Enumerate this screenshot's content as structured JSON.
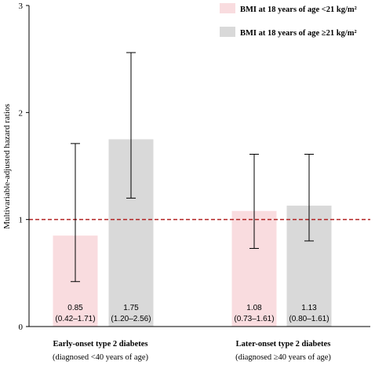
{
  "chart_data": {
    "type": "bar",
    "ylabel": "Multivariable-adjusted hazard ratios",
    "ylim": [
      0,
      3
    ],
    "yticks": [
      "0",
      "1",
      "2",
      "3"
    ],
    "reference_line": 1,
    "groups": [
      {
        "line1": "Early-onset type 2 diabetes",
        "line2": "(diagnosed <40 years of age)"
      },
      {
        "line1": "Later-onset type 2 diabetes",
        "line2": "(diagnosed  ≥40 years of age)"
      }
    ],
    "series": [
      {
        "name": "BMI at 18 years of age <21 kg/m²",
        "color": "#f9dcdf",
        "values": [
          0.85,
          1.08
        ],
        "ci_low": [
          0.42,
          0.73
        ],
        "ci_high": [
          1.71,
          1.61
        ],
        "labels": [
          "0.85",
          "1.08"
        ],
        "ci_labels": [
          "(0.42–1.71)",
          "(0.73–1.61)"
        ]
      },
      {
        "name": "BMI at 18 years of age ≥21 kg/m²",
        "color": "#d9d9d9",
        "values": [
          1.75,
          1.13
        ],
        "ci_low": [
          1.2,
          0.8
        ],
        "ci_high": [
          2.56,
          1.61
        ],
        "labels": [
          "1.75",
          "1.13"
        ],
        "ci_labels": [
          "(1.20–2.56)",
          "(0.80–1.61)"
        ]
      }
    ],
    "legend_position": "top-right",
    "refline_color": "#b22222"
  }
}
